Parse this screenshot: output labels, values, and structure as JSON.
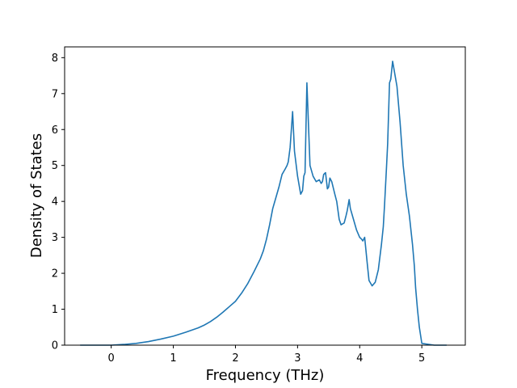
{
  "chart_data": {
    "type": "line",
    "title": "",
    "xlabel": "Frequency (THz)",
    "ylabel": "Density of States",
    "xlim": [
      -0.75,
      5.7
    ],
    "ylim": [
      0,
      8.3
    ],
    "xticks": [
      0,
      1,
      2,
      3,
      4,
      5
    ],
    "yticks": [
      0,
      1,
      2,
      3,
      4,
      5,
      6,
      7,
      8
    ],
    "grid": false,
    "legend": "none",
    "colors": {
      "line": "#1f77b4",
      "axes": "#000000"
    },
    "series": [
      {
        "x": [
          -0.5,
          -0.2,
          0.0,
          0.2,
          0.4,
          0.6,
          0.8,
          1.0,
          1.2,
          1.4,
          1.5,
          1.6,
          1.7,
          1.8,
          1.9,
          2.0,
          2.1,
          2.2,
          2.3,
          2.4,
          2.45,
          2.5,
          2.55,
          2.6,
          2.65,
          2.7,
          2.75,
          2.8,
          2.83,
          2.85,
          2.88,
          2.92,
          2.95,
          3.0,
          3.05,
          3.08,
          3.1,
          3.12,
          3.15,
          3.2,
          3.25,
          3.3,
          3.35,
          3.38,
          3.4,
          3.42,
          3.45,
          3.48,
          3.5,
          3.52,
          3.55,
          3.6,
          3.63,
          3.67,
          3.7,
          3.75,
          3.78,
          3.8,
          3.83,
          3.85,
          3.9,
          3.95,
          4.0,
          4.03,
          4.05,
          4.08,
          4.12,
          4.15,
          4.2,
          4.25,
          4.3,
          4.35,
          4.38,
          4.4,
          4.43,
          4.45,
          4.48,
          4.5,
          4.53,
          4.57,
          4.6,
          4.62,
          4.65,
          4.7,
          4.75,
          4.8,
          4.85,
          4.88,
          4.9,
          4.93,
          4.96,
          5.0,
          5.2,
          5.4
        ],
        "y": [
          0,
          0,
          0,
          0.02,
          0.05,
          0.1,
          0.17,
          0.25,
          0.36,
          0.48,
          0.56,
          0.66,
          0.78,
          0.92,
          1.07,
          1.22,
          1.45,
          1.72,
          2.05,
          2.4,
          2.63,
          2.95,
          3.35,
          3.8,
          4.1,
          4.4,
          4.75,
          4.9,
          5.0,
          5.1,
          5.5,
          6.5,
          5.4,
          4.7,
          4.2,
          4.3,
          4.7,
          4.8,
          7.3,
          5.0,
          4.7,
          4.55,
          4.6,
          4.5,
          4.55,
          4.75,
          4.8,
          4.35,
          4.4,
          4.65,
          4.55,
          4.2,
          4.0,
          3.5,
          3.35,
          3.4,
          3.6,
          3.75,
          4.05,
          3.8,
          3.5,
          3.2,
          3.0,
          2.95,
          2.9,
          3.0,
          2.3,
          1.8,
          1.65,
          1.75,
          2.1,
          2.8,
          3.3,
          3.9,
          4.9,
          5.6,
          7.3,
          7.4,
          7.9,
          7.5,
          7.2,
          6.8,
          6.2,
          5.0,
          4.2,
          3.6,
          2.8,
          2.2,
          1.6,
          1.0,
          0.5,
          0.05,
          0,
          0
        ]
      }
    ]
  }
}
